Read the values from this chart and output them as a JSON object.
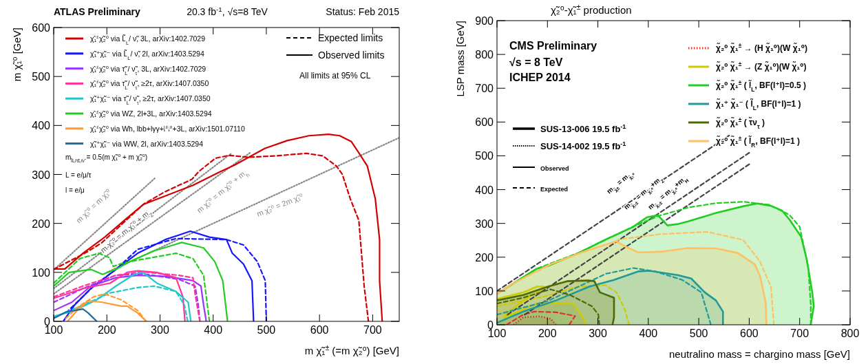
{
  "chart_data": [
    {
      "type": "line",
      "title": "ATLAS Preliminary",
      "subtitle": "20.3 fb$^{-1}$, √s=8 TeV",
      "xlabel": "m χ̃₁$^{±}$ (=m χ̃₂⁰) [GeV]",
      "ylabel": "m χ̃₁⁰ [GeV]",
      "xlim": [
        100,
        750
      ],
      "ylim": [
        0,
        600
      ],
      "xticks": [
        100,
        200,
        300,
        400,
        500,
        600,
        700
      ],
      "yticks": [
        0,
        100,
        200,
        300,
        400,
        500,
        600
      ],
      "legend": "top left",
      "annotations": [
        "Status: Feb 2015",
        "Expected limits",
        "Observed limits",
        "All limits at 95% CL",
        "m$_{l̃L/τ̃L/ν̃}$ = 0.5(m χ̃₁⁰ + m χ̃₂⁰)",
        "L = e/μ/τ",
        "l = e/μ",
        "m χ̃₂⁰ = m χ̃₁⁰",
        "m χ̃₂⁰ = m χ̃₁⁰ + m$_{Z}$",
        "m χ̃₂⁰ = m χ̃₁⁰ + m$_{h}$",
        "m χ̃₂⁰ = 2m χ̃₁⁰"
      ],
      "series": [
        {
          "color": "#888888",
          "line_style": "dotted",
          "x": [
            100,
            290
          ],
          "values": [
            105,
            292
          ]
        },
        {
          "color": "#888888",
          "line_style": "dotted",
          "x": [
            100,
            433
          ],
          "values": [
            67,
            342
          ]
        },
        {
          "color": "#888888",
          "line_style": "dotted",
          "x": [
            100,
            469
          ],
          "values": [
            56,
            344
          ]
        },
        {
          "color": "#888888",
          "line_style": "dotted",
          "x": [
            200,
            750
          ],
          "values": [
            100,
            375
          ]
        },
        {
          "name": "χ̃₁$^{±}$χ̃₂⁰ via L̃$_{L}$/ ν̃,   3L,   arXiv:1402.7029",
          "color": "#d40000",
          "line_style": "solid",
          "x": [
            100,
            121,
            155,
            196,
            238,
            269,
            310,
            362,
            414,
            440,
            497,
            539,
            580,
            617,
            638,
            660,
            674,
            690,
            705,
            713,
            713,
            718
          ],
          "values": [
            107,
            107,
            139,
            172,
            211,
            239,
            256,
            278,
            306,
            319,
            353,
            369,
            379,
            382,
            379,
            367,
            344,
            317,
            250,
            167,
            83,
            0
          ]
        },
        {
          "color": "#d40000",
          "line_style": "dashed",
          "x": [
            100,
            160,
            190,
            210,
            240,
            270,
            310,
            360,
            373,
            404,
            430,
            466,
            518,
            575,
            606,
            632,
            643,
            658,
            674,
            679,
            684,
            692
          ],
          "values": [
            106,
            140,
            160,
            180,
            210,
            240,
            265,
            290,
            306,
            333,
            339,
            335,
            338,
            343,
            338,
            317,
            300,
            250,
            206,
            139,
            72,
            0
          ]
        },
        {
          "name": "χ̃₁⁺χ̃₁⁻ via L̃$_{L}$/ ν̃,   2l,   arXiv:1403.5294",
          "color": "#1515ff",
          "line_style": "solid",
          "x": [
            118,
            139,
            170,
            217,
            258,
            310,
            357,
            393,
            425,
            436,
            457,
            473,
            476
          ],
          "values": [
            0,
            33,
            67,
            106,
            139,
            167,
            184,
            172,
            167,
            139,
            117,
            83,
            0
          ]
        },
        {
          "color": "#1515ff",
          "line_style": "dashed",
          "x": [
            123,
            175,
            217,
            258,
            330,
            425,
            457,
            483,
            498,
            500
          ],
          "values": [
            17,
            72,
            106,
            147,
            169,
            167,
            156,
            122,
            83,
            0
          ]
        },
        {
          "name": "χ̃₁$^{±}$χ̃₂⁰ via τ̃$_{L}$/ ν̃$_{τ}$,   3L,   arXiv:1402.7029",
          "color": "#9933ff",
          "line_style": "solid",
          "x": [
            100,
            134,
            170,
            217,
            258,
            310,
            362,
            377,
            382,
            387
          ],
          "values": [
            22,
            39,
            72,
            89,
            94,
            92,
            83,
            72,
            33,
            0
          ]
        },
        {
          "color": "#9933ff",
          "line_style": "dashed",
          "x": [
            100,
            155,
            217,
            268,
            335,
            366,
            372,
            375
          ],
          "values": [
            39,
            67,
            94,
            97,
            86,
            72,
            33,
            0
          ]
        },
        {
          "name": "χ̃₁$^{±}$χ̃₂⁰ via τ̃$_{L}$/ ν̃$_{τ}$,   ≥2τ,   arXiv:1407.0350",
          "color": "#ff3399",
          "line_style": "solid",
          "x": [
            100,
            155,
            206,
            238,
            258,
            294,
            330,
            343,
            347
          ],
          "values": [
            47,
            67,
            78,
            100,
            103,
            100,
            89,
            50,
            0
          ]
        },
        {
          "color": "#ff3399",
          "line_style": "dashed",
          "x": [
            100,
            155,
            217,
            268,
            335,
            362,
            366,
            375
          ],
          "values": [
            50,
            72,
            94,
            101,
            94,
            89,
            56,
            0
          ]
        },
        {
          "name": "χ̃₁⁺χ̃₁⁻ via τ̃$_{L}$/ ν̃$_{τ}$,   ≥2τ,   arXiv:1407.0350",
          "color": "#22c8c8",
          "line_style": "solid",
          "x": [
            103,
            139,
            181,
            217,
            253,
            268,
            294,
            330,
            353,
            358
          ],
          "values": [
            11,
            22,
            44,
            72,
            97,
            100,
            78,
            61,
            39,
            0
          ]
        },
        {
          "color": "#22c8c8",
          "line_style": "dashed",
          "x": [
            100,
            155,
            206,
            258,
            289,
            330,
            346,
            352
          ],
          "values": [
            8,
            33,
            58,
            69,
            72,
            61,
            33,
            0
          ]
        },
        {
          "name": "χ̃₁$^{±}$χ̃₂⁰ via WZ,   2l+3L,   arXiv:1403.5294",
          "color": "#22cc22",
          "line_style": "solid",
          "x": [
            100,
            129,
            170,
            192,
            217,
            243,
            289,
            341,
            382,
            403,
            418,
            427
          ],
          "values": [
            72,
            100,
            106,
            96,
            106,
            122,
            144,
            161,
            150,
            122,
            83,
            0
          ]
        },
        {
          "color": "#22cc22",
          "line_style": "dashed",
          "x": [
            100,
            149,
            185,
            205,
            212,
            227,
            258,
            330,
            362,
            382,
            387,
            393
          ],
          "values": [
            78,
            128,
            139,
            130,
            112,
            118,
            125,
            139,
            128,
            94,
            50,
            0
          ]
        },
        {
          "name": "χ̃₁$^{±}$χ̃₂⁰ via Wh,   lbb+lγγ+l$^{±}$l$^{±}$+3L,   arXiv:1501.07110",
          "color": "#ff9933",
          "line_style": "solid",
          "x": [
            126,
            144,
            165,
            191,
            227,
            238,
            258,
            274
          ],
          "values": [
            0,
            22,
            42,
            39,
            31,
            31,
            17,
            0
          ]
        },
        {
          "color": "#ff9933",
          "line_style": "dashed",
          "x": [
            123,
            144,
            175,
            196,
            227,
            258,
            274
          ],
          "values": [
            6,
            28,
            50,
            56,
            44,
            22,
            0
          ]
        },
        {
          "name": "χ̃₁⁺χ̃₁⁻ via WW,   2l,   arXiv:1403.5294",
          "color": "#1f6a9a",
          "line_style": "solid",
          "x": [
            100,
            123,
            155,
            165,
            181
          ],
          "values": [
            6,
            19,
            25,
            17,
            0
          ]
        }
      ]
    },
    {
      "type": "line",
      "title": "χ̃₂⁰-χ̃₁$^{±}$ production",
      "xlabel": "neutralino mass = chargino mass [GeV]",
      "ylabel": "LSP mass [GeV]",
      "xlim": [
        100,
        800
      ],
      "ylim": [
        0,
        900
      ],
      "xticks": [
        100,
        200,
        300,
        400,
        500,
        600,
        700,
        800
      ],
      "yticks": [
        0,
        100,
        200,
        300,
        400,
        500,
        600,
        700,
        800,
        900
      ],
      "legend": "top right",
      "annotations": [
        "CMS Preliminary",
        "√s = 8 TeV",
        "ICHEP 2014",
        "SUS-13-006  19.5 fb$^{-1}$",
        "SUS-14-002  19.5 fb$^{-1}$",
        "Observed",
        "Expected",
        "m$_{χ̃±}$ = m$_{χ̃₁⁰}$",
        "m$_{χ̃₁±}$ = m$_{χ̃₁⁰}$+m$_{Z}$",
        "m$_{χ̃₁±}$ = m$_{χ̃₁⁰}$+m$_{H}$"
      ],
      "series": [
        {
          "color": "#444444",
          "line_style": "dashed",
          "x": [
            100,
            560
          ],
          "values": [
            100,
            560
          ]
        },
        {
          "name": "χ̃₂⁰ χ̃₁$^{±}$ → (H χ̃₁⁰)(W χ̃₁⁰)",
          "type": "area",
          "color": "#e03030",
          "line_style": "dotted",
          "x": [
            133,
            152,
            185,
            206,
            217
          ],
          "values": [
            0,
            22,
            25,
            18,
            0
          ]
        },
        {
          "color": "#e03030",
          "line_style": "dashed",
          "x": [
            119,
            152,
            174,
            217,
            255,
            243
          ],
          "values": [
            0,
            30,
            39,
            37,
            26,
            0
          ]
        },
        {
          "name": "χ̃₂⁰ χ̃₁$^{±}$ → (Z χ̃₁⁰)(W χ̃₁⁰)",
          "type": "area",
          "color": "#cccc00",
          "line_style": "solid",
          "x": [
            100,
            152,
            179,
            193,
            195,
            168,
            124,
            113,
            119,
            179,
            250,
            267,
            277
          ],
          "values": [
            76,
            96,
            113,
            113,
            103,
            88,
            39,
            22,
            25,
            63,
            63,
            30,
            0
          ]
        },
        {
          "color": "#cccc00",
          "line_style": "dashed",
          "x": [
            100,
            195,
            261,
            315,
            337,
            353,
            362
          ],
          "values": [
            55,
            84,
            113,
            117,
            96,
            47,
            0
          ]
        },
        {
          "color": "#444444",
          "line_style": "dashed",
          "x": [
            121,
            600
          ],
          "values": [
            30,
            509
          ]
        },
        {
          "color": "#444444",
          "line_style": "dashed",
          "x": [
            155,
            600
          ],
          "values": [
            30,
            475
          ]
        },
        {
          "name": "χ̃₂⁰ χ̃₁$^{±}$ ( l̃$_{L}$, BF(l⁺l)=0.5 )",
          "type": "area",
          "color": "#22cc22",
          "line_style": "solid",
          "x": [
            100,
            135,
            179,
            201,
            260,
            315,
            369,
            397,
            419,
            438,
            458,
            479,
            534,
            589,
            616,
            643,
            665,
            681,
            703,
            714,
            725,
            728,
            722
          ],
          "values": [
            92,
            125,
            166,
            174,
            211,
            252,
            289,
            318,
            324,
            294,
            298,
            306,
            331,
            351,
            359,
            352,
            338,
            309,
            260,
            194,
            96,
            55,
            0
          ]
        },
        {
          "color": "#22cc22",
          "line_style": "dashed",
          "x": [
            100,
            179,
            260,
            369,
            420,
            479,
            534,
            590,
            640,
            680,
            700,
            717,
            722,
            722
          ],
          "values": [
            92,
            166,
            212,
            290,
            322,
            347,
            360,
            364,
            355,
            325,
            290,
            170,
            60,
            0
          ]
        },
        {
          "name": "χ̃₁⁺ χ̃₁⁻ ( l̃$_{L}$, BF(l⁺l)=1 )",
          "type": "area",
          "color": "#229999",
          "line_style": "solid",
          "x": [
            100,
            152,
            217,
            283,
            332,
            380,
            402,
            458,
            485,
            512,
            534,
            548,
            548
          ],
          "values": [
            6,
            39,
            72,
            113,
            133,
            158,
            160,
            147,
            137,
            96,
            72,
            39,
            0
          ]
        },
        {
          "color": "#229999",
          "line_style": "dashed",
          "x": [
            100,
            200,
            272,
            316,
            371,
            413,
            467,
            505,
            524
          ],
          "values": [
            30,
            70,
            120,
            151,
            168,
            158,
            133,
            96,
            0
          ]
        },
        {
          "name": "χ̃₂⁰ χ̃₁$^{±}$ ( τ̃ν$_{τ}$ )",
          "type": "area",
          "color": "#4d6b00",
          "line_style": "solid",
          "x": [
            100,
            152,
            201,
            239,
            283,
            293,
            304,
            332,
            332,
            329
          ],
          "values": [
            72,
            88,
            113,
            129,
            131,
            129,
            96,
            80,
            22,
            0
          ]
        },
        {
          "color": "#4d6b00",
          "line_style": "dashed",
          "x": [
            100,
            152,
            206,
            245,
            288,
            301,
            303
          ],
          "values": [
            63,
            80,
            105,
            88,
            55,
            30,
            0
          ]
        },
        {
          "name": "χ̃₂⁰ χ̃₁$^{±}$ ( l̃$_{R}$, BF(l⁺l)=1 )",
          "type": "area",
          "color": "#ffc060",
          "line_style": "solid",
          "x": [
            100,
            130,
            206,
            271,
            336,
            358,
            380,
            424,
            479,
            534,
            578,
            611,
            622,
            633,
            634
          ],
          "values": [
            92,
            121,
            179,
            216,
            247,
            229,
            214,
            216,
            227,
            226,
            212,
            179,
            142,
            63,
            0
          ]
        },
        {
          "color": "#ffc060",
          "line_style": "dashed",
          "x": [
            336,
            343,
            424,
            517,
            588,
            621,
            643,
            649
          ],
          "values": [
            247,
            253,
            268,
            275,
            251,
            188,
            113,
            0
          ]
        }
      ]
    }
  ]
}
